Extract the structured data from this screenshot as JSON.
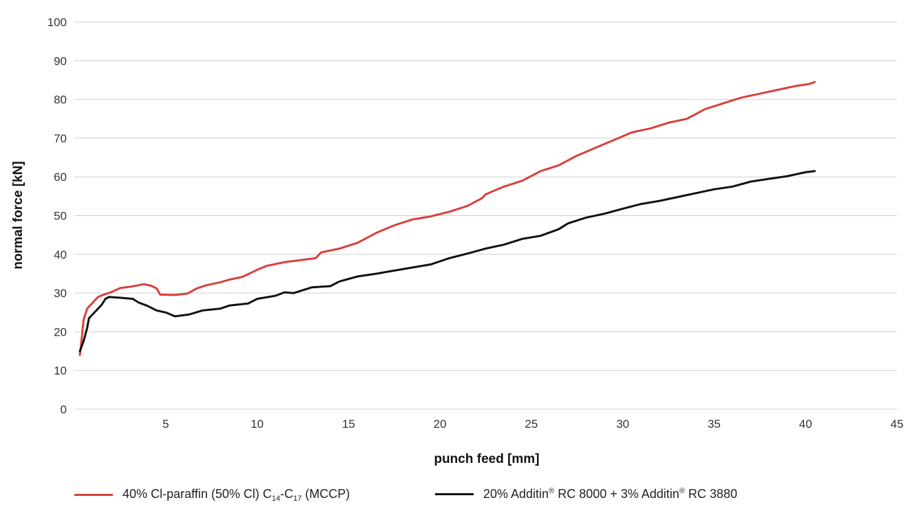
{
  "chart_data": {
    "type": "line",
    "title": "",
    "xlabel": "punch feed [mm]",
    "ylabel": "normal force [kN]",
    "xlim": [
      0,
      45
    ],
    "ylim": [
      0,
      100
    ],
    "x_ticks": [
      "5",
      "10",
      "15",
      "20",
      "25",
      "30",
      "35",
      "40",
      "45"
    ],
    "y_ticks": [
      "0",
      "10",
      "20",
      "30",
      "40",
      "50",
      "60",
      "70",
      "80",
      "90",
      "100"
    ],
    "grid": "horizontal",
    "legend_position": "bottom",
    "series": [
      {
        "name_parts": {
          "main": "40% Cl-paraffin (50% Cl) C",
          "sub1": "14",
          "mid": "-C",
          "sub2": "17",
          "end": " (MCCP)"
        },
        "color": "#d9403b",
        "points": [
          [
            0.3,
            14
          ],
          [
            0.4,
            18
          ],
          [
            0.5,
            23
          ],
          [
            0.7,
            26
          ],
          [
            1.0,
            27.5
          ],
          [
            1.3,
            29
          ],
          [
            1.6,
            29.6
          ],
          [
            2.0,
            30.2
          ],
          [
            2.5,
            31.3
          ],
          [
            3.0,
            31.6
          ],
          [
            3.5,
            32
          ],
          [
            3.8,
            32.3
          ],
          [
            4.2,
            31.9
          ],
          [
            4.5,
            31.2
          ],
          [
            4.7,
            29.6
          ],
          [
            5.5,
            29.5
          ],
          [
            6.2,
            29.9
          ],
          [
            6.7,
            31.2
          ],
          [
            7.2,
            32
          ],
          [
            8.0,
            32.8
          ],
          [
            8.5,
            33.5
          ],
          [
            9.2,
            34.2
          ],
          [
            10.0,
            36
          ],
          [
            10.5,
            37
          ],
          [
            11.5,
            38
          ],
          [
            12.5,
            38.6
          ],
          [
            13.2,
            39
          ],
          [
            13.5,
            40.5
          ],
          [
            14.5,
            41.5
          ],
          [
            15.5,
            43
          ],
          [
            16.5,
            45.5
          ],
          [
            17.5,
            47.5
          ],
          [
            18.5,
            49
          ],
          [
            19.5,
            49.8
          ],
          [
            20.5,
            51
          ],
          [
            21.5,
            52.5
          ],
          [
            22.3,
            54.5
          ],
          [
            22.5,
            55.5
          ],
          [
            23.5,
            57.5
          ],
          [
            24.5,
            59
          ],
          [
            25.5,
            61.5
          ],
          [
            26.5,
            63
          ],
          [
            27.5,
            65.5
          ],
          [
            28.5,
            67.5
          ],
          [
            29.5,
            69.5
          ],
          [
            30.5,
            71.5
          ],
          [
            31.5,
            72.5
          ],
          [
            32.5,
            74
          ],
          [
            33.5,
            75
          ],
          [
            34.5,
            77.5
          ],
          [
            35.5,
            79
          ],
          [
            36.5,
            80.5
          ],
          [
            37.5,
            81.5
          ],
          [
            38.5,
            82.5
          ],
          [
            39.5,
            83.5
          ],
          [
            40.2,
            84
          ],
          [
            40.5,
            84.5
          ]
        ]
      },
      {
        "name_parts": {
          "main": "20% Additin",
          "reg1": "®",
          "mid": " RC 8000 + 3% Additin",
          "reg2": "®",
          "end": " RC 3880"
        },
        "color": "#111111",
        "points": [
          [
            0.3,
            15
          ],
          [
            0.5,
            17.5
          ],
          [
            0.7,
            21
          ],
          [
            0.8,
            23.5
          ],
          [
            1.2,
            25.5
          ],
          [
            1.5,
            27
          ],
          [
            1.7,
            28.5
          ],
          [
            1.9,
            29
          ],
          [
            2.5,
            28.8
          ],
          [
            3.2,
            28.5
          ],
          [
            3.5,
            27.6
          ],
          [
            4.0,
            26.7
          ],
          [
            4.5,
            25.5
          ],
          [
            5.0,
            25
          ],
          [
            5.5,
            24
          ],
          [
            6.3,
            24.5
          ],
          [
            7.0,
            25.5
          ],
          [
            8.0,
            26
          ],
          [
            8.5,
            26.8
          ],
          [
            9.5,
            27.3
          ],
          [
            10.0,
            28.5
          ],
          [
            11.0,
            29.3
          ],
          [
            11.5,
            30.2
          ],
          [
            12.0,
            30
          ],
          [
            13.0,
            31.5
          ],
          [
            14.0,
            31.8
          ],
          [
            14.5,
            33
          ],
          [
            15.5,
            34.3
          ],
          [
            16.5,
            35
          ],
          [
            17.5,
            35.8
          ],
          [
            18.5,
            36.6
          ],
          [
            19.5,
            37.4
          ],
          [
            20.5,
            39
          ],
          [
            21.5,
            40.2
          ],
          [
            22.5,
            41.5
          ],
          [
            23.5,
            42.5
          ],
          [
            24.5,
            44
          ],
          [
            25.5,
            44.8
          ],
          [
            26.5,
            46.5
          ],
          [
            27.0,
            48
          ],
          [
            28.0,
            49.5
          ],
          [
            29.0,
            50.5
          ],
          [
            30.0,
            51.8
          ],
          [
            31.0,
            53
          ],
          [
            32.0,
            53.8
          ],
          [
            33.0,
            54.8
          ],
          [
            34.0,
            55.8
          ],
          [
            35.0,
            56.8
          ],
          [
            36.0,
            57.5
          ],
          [
            37.0,
            58.8
          ],
          [
            38.0,
            59.5
          ],
          [
            39.0,
            60.2
          ],
          [
            40.0,
            61.2
          ],
          [
            40.5,
            61.5
          ]
        ]
      }
    ]
  }
}
